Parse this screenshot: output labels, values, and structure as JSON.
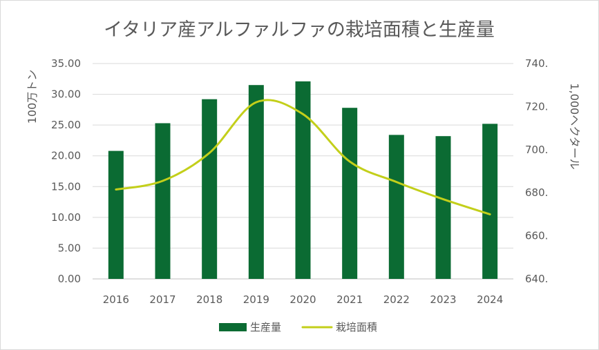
{
  "chart_data": {
    "type": "bar",
    "title": "イタリア産アルファルファの栽培面積と生産量",
    "categories": [
      "2016",
      "2017",
      "2018",
      "2019",
      "2020",
      "2021",
      "2022",
      "2023",
      "2024"
    ],
    "series": [
      {
        "name": "生産量",
        "type": "bar",
        "axis": "left",
        "color": "#0b6b33",
        "values": [
          20.8,
          25.3,
          29.2,
          31.5,
          32.1,
          27.8,
          23.4,
          23.2,
          25.2
        ]
      },
      {
        "name": "栽培面積",
        "type": "line",
        "smooth": true,
        "axis": "right",
        "color": "#c3cf1a",
        "values": [
          681.5,
          685.5,
          698.5,
          722.0,
          716.5,
          694.5,
          685.0,
          677.0,
          670.0
        ]
      }
    ],
    "y_left": {
      "label": "100万トン",
      "ylim": [
        0,
        35
      ],
      "ticks": [
        "0.00",
        "5.00",
        "10.00",
        "15.00",
        "20.00",
        "25.00",
        "30.00",
        "35.00"
      ]
    },
    "y_right": {
      "label": "1,000ヘクタール",
      "ylim": [
        640,
        740
      ],
      "ticks": [
        "640.",
        "660.",
        "680.",
        "700.",
        "720.",
        "740."
      ]
    },
    "grid": true,
    "legend": "bottom"
  }
}
